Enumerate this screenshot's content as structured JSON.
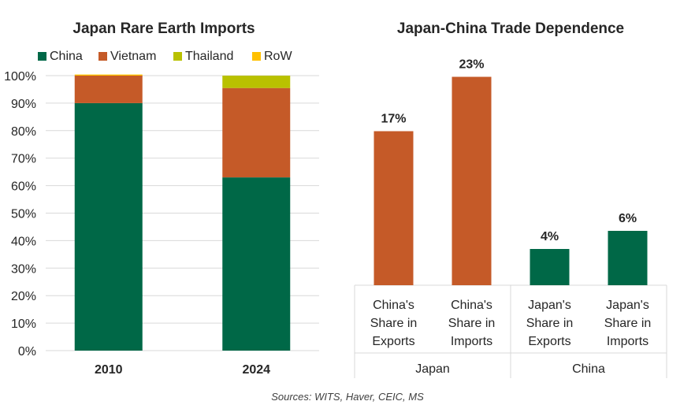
{
  "chart_data": [
    {
      "type": "bar",
      "stacked": true,
      "title": "Japan Rare Earth Imports",
      "categories": [
        "2010",
        "2024"
      ],
      "series": [
        {
          "name": "China",
          "values": [
            90,
            63
          ],
          "color": "#006847"
        },
        {
          "name": "Vietnam",
          "values": [
            10,
            32.5
          ],
          "color": "#c55a28"
        },
        {
          "name": "Thailand",
          "values": [
            0,
            4.5
          ],
          "color": "#b9c100"
        },
        {
          "name": "RoW",
          "values": [
            0.4,
            0
          ],
          "color": "#ffc000"
        }
      ],
      "ylim": [
        0,
        100
      ],
      "yticks": [
        0,
        10,
        20,
        30,
        40,
        50,
        60,
        70,
        80,
        90,
        100
      ],
      "ytick_labels": [
        "0%",
        "10%",
        "20%",
        "30%",
        "40%",
        "50%",
        "60%",
        "70%",
        "80%",
        "90%",
        "100%"
      ],
      "legend_position": "top",
      "grid": true,
      "xlabel": "",
      "ylabel": ""
    },
    {
      "type": "bar",
      "title": "Japan-China Trade Dependence",
      "categories": [
        {
          "lines": [
            "China's",
            "Share in",
            "Exports"
          ],
          "group": "Japan"
        },
        {
          "lines": [
            "China's",
            "Share in",
            "Imports"
          ],
          "group": "Japan"
        },
        {
          "lines": [
            "Japan's",
            "Share in",
            "Exports"
          ],
          "group": "China"
        },
        {
          "lines": [
            "Japan's",
            "Share in",
            "Imports"
          ],
          "group": "China"
        }
      ],
      "groups": [
        "Japan",
        "China"
      ],
      "values": [
        17,
        23,
        4,
        6
      ],
      "data_labels": [
        "17%",
        "23%",
        "4%",
        "6%"
      ],
      "colors": [
        "#c55a28",
        "#c55a28",
        "#006847",
        "#006847"
      ],
      "ylim": [
        0,
        24
      ],
      "grid": false,
      "xlabel": "",
      "ylabel": ""
    }
  ],
  "source": "Sources: WITS, Haver, CEIC, MS"
}
